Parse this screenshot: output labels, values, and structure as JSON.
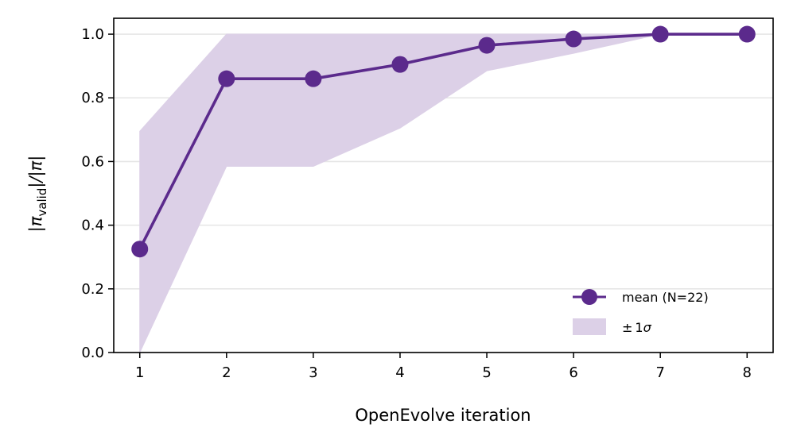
{
  "chart_data": {
    "type": "line",
    "xlabel": "OpenEvolve iteration",
    "ylabel": "|π_valid|/|π|",
    "ylabel_parts": {
      "open": "|π",
      "sub": "valid",
      "close": "|/|π|"
    },
    "x": [
      1,
      2,
      3,
      4,
      5,
      6,
      7,
      8
    ],
    "series": [
      {
        "name": "mean (N=22)",
        "values": [
          0.325,
          0.86,
          0.86,
          0.905,
          0.965,
          0.985,
          1.0,
          1.0
        ],
        "color": "#5b2a8c"
      }
    ],
    "band": {
      "name": "± 1σ",
      "name_parts": {
        "pm": "±",
        "one": "1",
        "sigma": "σ"
      },
      "lower": [
        0.0,
        0.585,
        0.585,
        0.705,
        0.885,
        0.94,
        1.0,
        1.0
      ],
      "upper": [
        0.695,
        1.0,
        1.0,
        1.0,
        1.0,
        1.0,
        1.0,
        1.0
      ],
      "color": "#dcd0e7"
    },
    "xlim": [
      0.7,
      8.3
    ],
    "ylim": [
      0.0,
      1.05
    ],
    "xticks": [
      "1",
      "2",
      "3",
      "4",
      "5",
      "6",
      "7",
      "8"
    ],
    "yticks": [
      "0.0",
      "0.2",
      "0.4",
      "0.6",
      "0.8",
      "1.0"
    ],
    "grid": "y",
    "legend_position": "lower-right"
  }
}
